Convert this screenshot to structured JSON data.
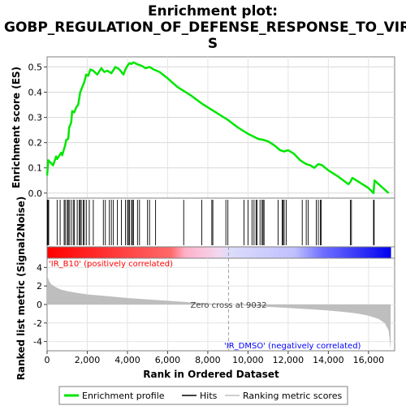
{
  "chart_data": {
    "type": "line",
    "title": "Enrichment plot: GOBP_REGULATION_OF_DEFENSE_RESPONSE_TO_VIRUS",
    "title_lines": [
      "Enrichment plot:",
      "GOBP_REGULATION_OF_DEFENSE_RESPONSE_TO_VIRU",
      "S"
    ],
    "xlabel": "Rank in Ordered Dataset",
    "ylabel_top": "Enrichment score (ES)",
    "ylabel_bottom": "Ranked list metric (Signal2Noise)",
    "xlim": [
      0,
      17300
    ],
    "x_ticks": [
      0,
      2000,
      4000,
      6000,
      8000,
      10000,
      12000,
      14000,
      16000
    ],
    "x_tick_labels": [
      "0",
      "2,000",
      "4,000",
      "6,000",
      "8,000",
      "10,000",
      "12,000",
      "14,000",
      "16,000"
    ],
    "es_ylim": [
      -0.02,
      0.54
    ],
    "es_ticks": [
      0.0,
      0.1,
      0.2,
      0.3,
      0.4,
      0.5
    ],
    "es_tick_labels": [
      "0.0",
      "0.1",
      "0.2",
      "0.3",
      "0.4",
      "0.5"
    ],
    "metric_ylim": [
      -5,
      5
    ],
    "metric_ticks": [
      4,
      2,
      0,
      -2,
      -4
    ],
    "metric_tick_labels": [
      "4",
      "2",
      "0",
      "-2",
      "-4"
    ],
    "zero_cross_rank": 9032,
    "zero_cross_label": "Zero cross at 9032",
    "pos_label": "'IR_B10' (positively correlated)",
    "neg_label": "'IR_DMSO' (negatively correlated)",
    "es_curve": {
      "x": [
        0,
        60,
        120,
        300,
        450,
        500,
        700,
        750,
        900,
        950,
        1050,
        1100,
        1200,
        1250,
        1350,
        1450,
        1550,
        1650,
        1750,
        1850,
        1950,
        2050,
        2150,
        2300,
        2500,
        2700,
        2850,
        3000,
        3200,
        3400,
        3600,
        3800,
        3900,
        4000,
        4100,
        4200,
        4300,
        4500,
        4700,
        4900,
        5100,
        5300,
        5600,
        6000,
        6500,
        6800,
        7200,
        7700,
        8200,
        8700,
        9000,
        9500,
        10000,
        10500,
        10800,
        11000,
        11300,
        11600,
        11800,
        12000,
        12300,
        12600,
        12900,
        13100,
        13300,
        13500,
        13700,
        14000,
        14500,
        15000,
        15100,
        15200,
        16000,
        16250,
        16300,
        17000
      ],
      "y": [
        0.07,
        0.13,
        0.125,
        0.11,
        0.145,
        0.135,
        0.16,
        0.15,
        0.19,
        0.21,
        0.215,
        0.26,
        0.28,
        0.325,
        0.32,
        0.34,
        0.35,
        0.4,
        0.42,
        0.44,
        0.47,
        0.465,
        0.49,
        0.485,
        0.47,
        0.495,
        0.48,
        0.485,
        0.475,
        0.5,
        0.49,
        0.47,
        0.49,
        0.505,
        0.515,
        0.512,
        0.518,
        0.51,
        0.505,
        0.495,
        0.5,
        0.49,
        0.48,
        0.455,
        0.42,
        0.405,
        0.385,
        0.355,
        0.33,
        0.305,
        0.29,
        0.26,
        0.235,
        0.215,
        0.21,
        0.205,
        0.19,
        0.17,
        0.165,
        0.17,
        0.155,
        0.13,
        0.115,
        0.11,
        0.1,
        0.115,
        0.11,
        0.09,
        0.065,
        0.035,
        0.045,
        0.06,
        0.02,
        0.0,
        0.05,
        0.0
      ]
    },
    "hits": [
      10,
      40,
      80,
      500,
      650,
      850,
      900,
      1000,
      1050,
      1100,
      1200,
      1300,
      1350,
      1500,
      1600,
      1650,
      1700,
      1800,
      1850,
      1950,
      2100,
      2300,
      2800,
      2900,
      3100,
      3200,
      3300,
      3500,
      3700,
      3900,
      4000,
      4050,
      4100,
      4200,
      4250,
      4300,
      4500,
      4600,
      5000,
      5100,
      5400,
      6800,
      7700,
      8200,
      8250,
      8900,
      9000,
      9800,
      10000,
      10200,
      10300,
      10400,
      10450,
      10600,
      10700,
      10750,
      10800,
      11500,
      11700,
      11750,
      11800,
      11900,
      12700,
      12900,
      13000,
      13400,
      13500,
      13600,
      13650,
      15100,
      15150,
      16250,
      16280
    ],
    "metric_curve": {
      "x": [
        0,
        80,
        200,
        400,
        700,
        1000,
        1500,
        2000,
        3000,
        4000,
        5000,
        6000,
        7000,
        8000,
        9032,
        10000,
        11000,
        12000,
        13000,
        14000,
        15000,
        15500,
        16000,
        16500,
        16800,
        17000,
        17100
      ],
      "y": [
        3.3,
        2.6,
        2.2,
        1.9,
        1.6,
        1.45,
        1.25,
        1.1,
        0.9,
        0.7,
        0.55,
        0.4,
        0.25,
        0.12,
        0.0,
        -0.12,
        -0.25,
        -0.38,
        -0.5,
        -0.65,
        -0.85,
        -1.0,
        -1.2,
        -1.55,
        -2.0,
        -2.8,
        -4.8
      ]
    },
    "legend": [
      "Enrichment profile",
      "Hits",
      "Ranking metric scores"
    ],
    "colors": {
      "es_line": "#00e600",
      "hit_line": "#000000",
      "metric_fill": "#bebebe",
      "bar_red": "#ff0000",
      "bar_pink": "#ffb4c8",
      "bar_lavender": "#d8d8ff",
      "bar_blue": "#0000ff",
      "pos_text": "#ff0000",
      "neg_text": "#0000ff"
    }
  }
}
